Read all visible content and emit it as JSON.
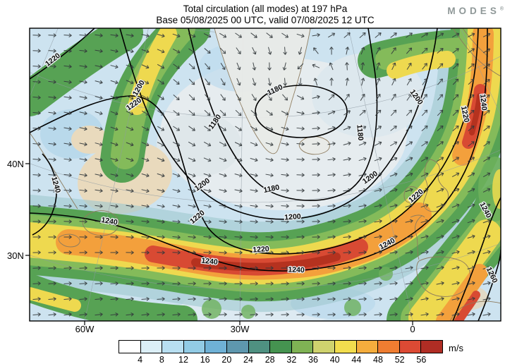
{
  "header": {
    "title_line1": "Total circulation (all modes) at 197 hPa",
    "title_line2": "Base 05/08/2025 00 UTC, valid 07/08/2025 12 UTC",
    "logo": "MODES",
    "logo_reg": "®"
  },
  "axes": {
    "lat_labels": [
      "40N",
      "30N"
    ],
    "lon_labels": [
      "60W",
      "30W",
      "0"
    ]
  },
  "colorbar": {
    "unit": "m/s",
    "tick_labels": [
      "4",
      "8",
      "12",
      "16",
      "20",
      "24",
      "28",
      "32",
      "36",
      "40",
      "44",
      "48",
      "52",
      "56"
    ],
    "colors": [
      "#ffffff",
      "#dceff7",
      "#b8dff1",
      "#92cbe5",
      "#6fb1d6",
      "#5e97ae",
      "#4f9181",
      "#459350",
      "#7fb254",
      "#cfd26e",
      "#f2dd4e",
      "#f5ad3d",
      "#ef7d31",
      "#dc4a34",
      "#b02d24"
    ]
  },
  "contour_labels": [
    "1220",
    "1200",
    "1220",
    "1180",
    "1180",
    "1180",
    "1180",
    "1200",
    "1200",
    "1200",
    "1200",
    "1220",
    "1220",
    "1220",
    "1220",
    "1240",
    "1240",
    "1240",
    "1240",
    "1240",
    "1240",
    "1240",
    "1260"
  ],
  "chart_data": {
    "type": "heatmap",
    "title": "Total circulation (all modes) at 197 hPa",
    "subtitle": "Base 05/08/2025 00 UTC, valid 07/08/2025 12 UTC",
    "field": "total circulation wind speed shading with height contours and wind vectors",
    "units": "m/s",
    "colorbar_levels": [
      4,
      8,
      12,
      16,
      20,
      24,
      28,
      32,
      36,
      40,
      44,
      48,
      52,
      56
    ],
    "colorbar_colors": [
      "#ffffff",
      "#dceff7",
      "#b8dff1",
      "#92cbe5",
      "#6fb1d6",
      "#5e97ae",
      "#4f9181",
      "#459350",
      "#7fb254",
      "#cfd26e",
      "#f2dd4e",
      "#f5ad3d",
      "#ef7d31",
      "#dc4a34",
      "#b02d24"
    ],
    "contour_levels_visible": [
      1180,
      1200,
      1220,
      1240,
      1260
    ],
    "lat_ticks": [
      "40N",
      "30N"
    ],
    "lon_ticks": [
      "60W",
      "30W",
      "0"
    ],
    "legend_position": "bottom"
  }
}
